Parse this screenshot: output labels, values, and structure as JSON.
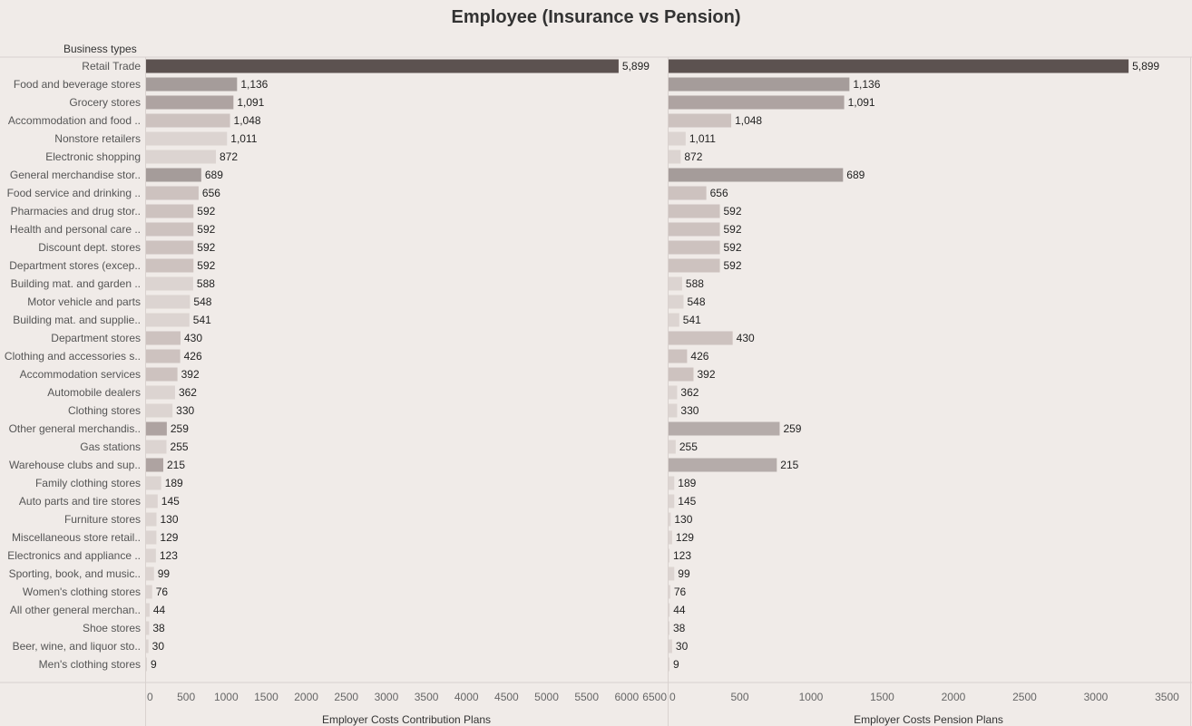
{
  "chart_data": {
    "type": "bar",
    "title": "Employee (Insurance vs Pension)",
    "row_header": "Business types",
    "categories": [
      "Retail Trade",
      "Food and beverage stores",
      "Grocery stores",
      "Accommodation and food ..",
      "Nonstore retailers",
      "Electronic shopping",
      "General merchandise stor..",
      "Food service and drinking ..",
      "Pharmacies and drug stor..",
      "Health and personal care ..",
      "Discount dept. stores",
      "Department stores (excep..",
      "Building mat. and garden ..",
      "Motor vehicle and parts",
      "Building mat. and supplie..",
      "Department stores",
      "Clothing and accessories s..",
      "Accommodation services",
      "Automobile dealers",
      "Clothing stores",
      "Other general merchandis..",
      "Gas stations",
      "Warehouse clubs and sup..",
      "Family clothing stores",
      "Auto parts and tire stores",
      "Furniture stores",
      "Miscellaneous store retail..",
      "Electronics and appliance ..",
      "Sporting, book, and music..",
      "Women's clothing stores",
      "All other general merchan..",
      "Shoe stores",
      "Beer, wine, and liquor sto..",
      "Men's clothing stores"
    ],
    "labels": [
      "5,899",
      "1,136",
      "1,091",
      "1,048",
      "1,011",
      "872",
      "689",
      "656",
      "592",
      "592",
      "592",
      "592",
      "588",
      "548",
      "541",
      "430",
      "426",
      "392",
      "362",
      "330",
      "259",
      "255",
      "215",
      "189",
      "145",
      "130",
      "129",
      "123",
      "99",
      "76",
      "44",
      "38",
      "30",
      "9"
    ],
    "panels": [
      {
        "xlabel": "Employer Costs Contribution Plans",
        "xlim": [
          0,
          6500
        ],
        "ticks": [
          0,
          500,
          1000,
          1500,
          2000,
          2500,
          3000,
          3500,
          4000,
          4500,
          5000,
          5500,
          6000,
          6500
        ],
        "values": [
          5899,
          1136,
          1091,
          1048,
          1011,
          872,
          689,
          656,
          592,
          592,
          592,
          592,
          588,
          548,
          541,
          430,
          426,
          392,
          362,
          330,
          259,
          255,
          215,
          189,
          145,
          130,
          129,
          123,
          99,
          76,
          44,
          38,
          30,
          9
        ],
        "colors": [
          "#5c5250",
          "#a59c9a",
          "#aea3a1",
          "#cdc2bf",
          "#dcd4d1",
          "#dcd4d1",
          "#a59c9a",
          "#cdc2bf",
          "#cdc2bf",
          "#cdc2bf",
          "#cdc2bf",
          "#cdc2bf",
          "#dcd4d1",
          "#dcd4d1",
          "#dcd4d1",
          "#cdc2bf",
          "#cdc2bf",
          "#cdc2bf",
          "#dcd4d1",
          "#dcd4d1",
          "#aea3a1",
          "#dcd4d1",
          "#aea3a1",
          "#dcd4d1",
          "#dcd4d1",
          "#dcd4d1",
          "#dcd4d1",
          "#dcd4d1",
          "#dcd4d1",
          "#dcd4d1",
          "#dcd4d1",
          "#dcd4d1",
          "#dcd4d1",
          "#dcd4d1"
        ]
      },
      {
        "xlabel": "Employer Costs Pension Plans",
        "xlim": [
          0,
          3650
        ],
        "ticks": [
          0,
          500,
          1000,
          1500,
          2000,
          2500,
          3000,
          3500
        ],
        "values": [
          3230,
          1270,
          1233,
          440,
          120,
          85,
          1225,
          265,
          360,
          360,
          360,
          360,
          95,
          105,
          75,
          450,
          130,
          175,
          60,
          60,
          780,
          50,
          760,
          40,
          40,
          15,
          25,
          5,
          40,
          12,
          8,
          5,
          25,
          3
        ],
        "colors": [
          "#5c5250",
          "#a59c9a",
          "#aea3a1",
          "#cdc2bf",
          "#dcd4d1",
          "#dcd4d1",
          "#a59c9a",
          "#cdc2bf",
          "#cdc2bf",
          "#cdc2bf",
          "#cdc2bf",
          "#cdc2bf",
          "#dcd4d1",
          "#dcd4d1",
          "#dcd4d1",
          "#cdc2bf",
          "#cdc2bf",
          "#cdc2bf",
          "#dcd4d1",
          "#dcd4d1",
          "#b5acaa",
          "#dcd4d1",
          "#b5acaa",
          "#dcd4d1",
          "#dcd4d1",
          "#dcd4d1",
          "#dcd4d1",
          "#dcd4d1",
          "#dcd4d1",
          "#dcd4d1",
          "#dcd4d1",
          "#dcd4d1",
          "#dcd4d1",
          "#dcd4d1"
        ]
      }
    ],
    "grid": false,
    "legend": "none"
  }
}
